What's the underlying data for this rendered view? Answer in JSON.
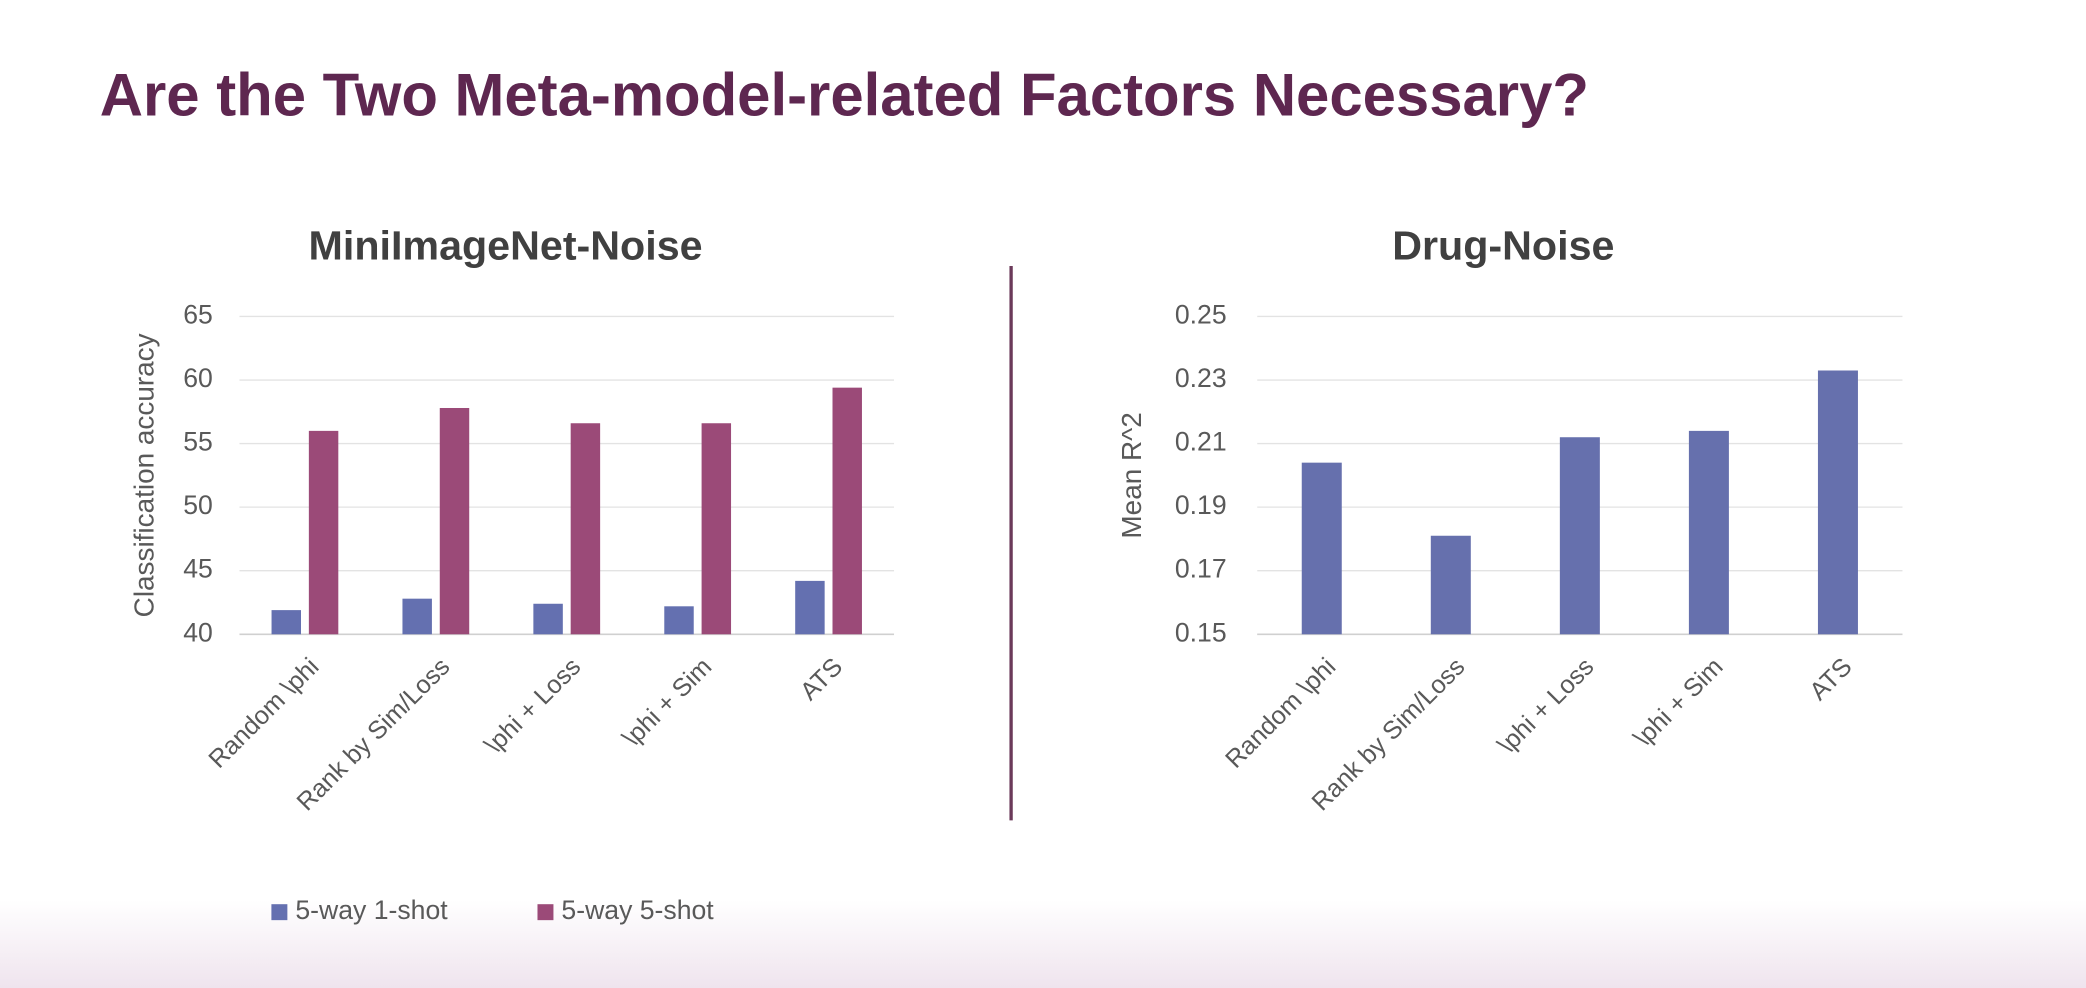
{
  "title": "Are the Two Meta-model-related Factors Necessary?",
  "chart_data": [
    {
      "type": "bar",
      "title": "MiniImageNet-Noise",
      "y_label": "Classification accuracy",
      "categories": [
        "Random \\phi",
        "Rank by Sim/Loss",
        "\\phi + Loss",
        "\\phi + Sim",
        "ATS"
      ],
      "series": [
        {
          "name": "5-way 1-shot",
          "color": "#6470b0",
          "values": [
            41.9,
            42.8,
            42.4,
            42.2,
            44.2
          ]
        },
        {
          "name": "5-way 5-shot",
          "color": "#9b4a78",
          "values": [
            56.0,
            57.8,
            56.6,
            56.6,
            59.4
          ]
        }
      ],
      "ylim": [
        40,
        65
      ],
      "yticks": [
        40,
        45,
        50,
        55,
        60,
        65
      ],
      "grid": true,
      "legend": "bottom"
    },
    {
      "type": "bar",
      "title": "Drug-Noise",
      "y_label": "Mean R^2",
      "categories": [
        "Random \\phi",
        "Rank by Sim/Loss",
        "\\phi + Loss",
        "\\phi + Sim",
        "ATS"
      ],
      "values": [
        0.204,
        0.181,
        0.212,
        0.214,
        0.233
      ],
      "color": "#6670ad",
      "ylim": [
        0.15,
        0.25
      ],
      "yticks": [
        0.15,
        0.17,
        0.19,
        0.21,
        0.23,
        0.25
      ],
      "grid": true
    }
  ]
}
